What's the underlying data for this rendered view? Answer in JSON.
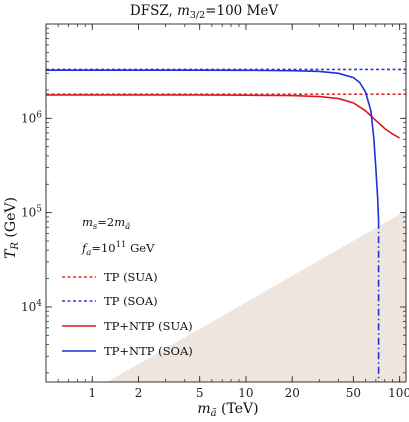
{
  "chart_data": {
    "type": "line",
    "title_main": "DFSZ, ",
    "title_sub_m": "m",
    "title_sub_idx": "3/2",
    "title_rest": "=100 MeV",
    "xlabel_m": "m",
    "xlabel_sub": "ã",
    "xlabel_unit": " (TeV)",
    "ylabel_t": "T",
    "ylabel_sub": "R",
    "ylabel_unit": " (GeV)",
    "x_scale": "log",
    "y_scale": "log",
    "xlim": [
      0.5,
      110
    ],
    "ylim": [
      1600,
      10000000
    ],
    "x_ticks": [
      {
        "value": 1,
        "label": "1"
      },
      {
        "value": 2,
        "label": "2"
      },
      {
        "value": 5,
        "label": "5"
      },
      {
        "value": 10,
        "label": "10"
      },
      {
        "value": 20,
        "label": "20"
      },
      {
        "value": 50,
        "label": "50"
      },
      {
        "value": 100,
        "label": "100"
      }
    ],
    "y_ticks": [
      {
        "value": 10000,
        "base": "10",
        "exp": "4"
      },
      {
        "value": 100000,
        "base": "10",
        "exp": "5"
      },
      {
        "value": 1000000,
        "base": "10",
        "exp": "6"
      }
    ],
    "annotations": {
      "ms_m": "m",
      "ms_sub": "s",
      "ms_eq": "=2",
      "ms_m2": "m",
      "ms_sub2": "ã",
      "fa_f": "f",
      "fa_sub": "a",
      "fa_eq": "=10",
      "fa_exp": "11",
      "fa_unit": " GeV"
    },
    "excluded_region_color": "#efe5df",
    "series": [
      {
        "name": "TP (SUA)",
        "color": "#e8312a",
        "dash": "dotted",
        "points": [
          [
            0.5,
            1800000
          ],
          [
            110,
            1800000
          ]
        ]
      },
      {
        "name": "TP (SOA)",
        "color": "#2d3fd8",
        "dash": "dotted",
        "points": [
          [
            0.5,
            3300000
          ],
          [
            110,
            3300000
          ]
        ]
      },
      {
        "name": "TP+NTP (SUA)",
        "color": "#d8191f",
        "dash": "solid",
        "points": [
          [
            0.5,
            1770000
          ],
          [
            5,
            1770000
          ],
          [
            10,
            1760000
          ],
          [
            20,
            1740000
          ],
          [
            30,
            1700000
          ],
          [
            40,
            1620000
          ],
          [
            50,
            1460000
          ],
          [
            60,
            1200000
          ],
          [
            70,
            950000
          ],
          [
            80,
            780000
          ],
          [
            90,
            680000
          ],
          [
            100,
            620000
          ]
        ]
      },
      {
        "name": "TP+NTP (SOA)",
        "color": "#1e31d6",
        "dash": "solid",
        "points": [
          [
            0.5,
            3240000
          ],
          [
            5,
            3240000
          ],
          [
            10,
            3230000
          ],
          [
            20,
            3200000
          ],
          [
            30,
            3140000
          ],
          [
            40,
            3000000
          ],
          [
            50,
            2700000
          ],
          [
            55,
            2400000
          ],
          [
            60,
            1900000
          ],
          [
            65,
            1200000
          ],
          [
            68,
            600000
          ],
          [
            70,
            300000
          ],
          [
            72,
            140000
          ],
          [
            73,
            80000
          ]
        ]
      },
      {
        "name": "",
        "color": "#1e31d6",
        "dash": "dashdot",
        "points": [
          [
            73,
            80000
          ],
          [
            73,
            1600
          ]
        ]
      }
    ]
  }
}
